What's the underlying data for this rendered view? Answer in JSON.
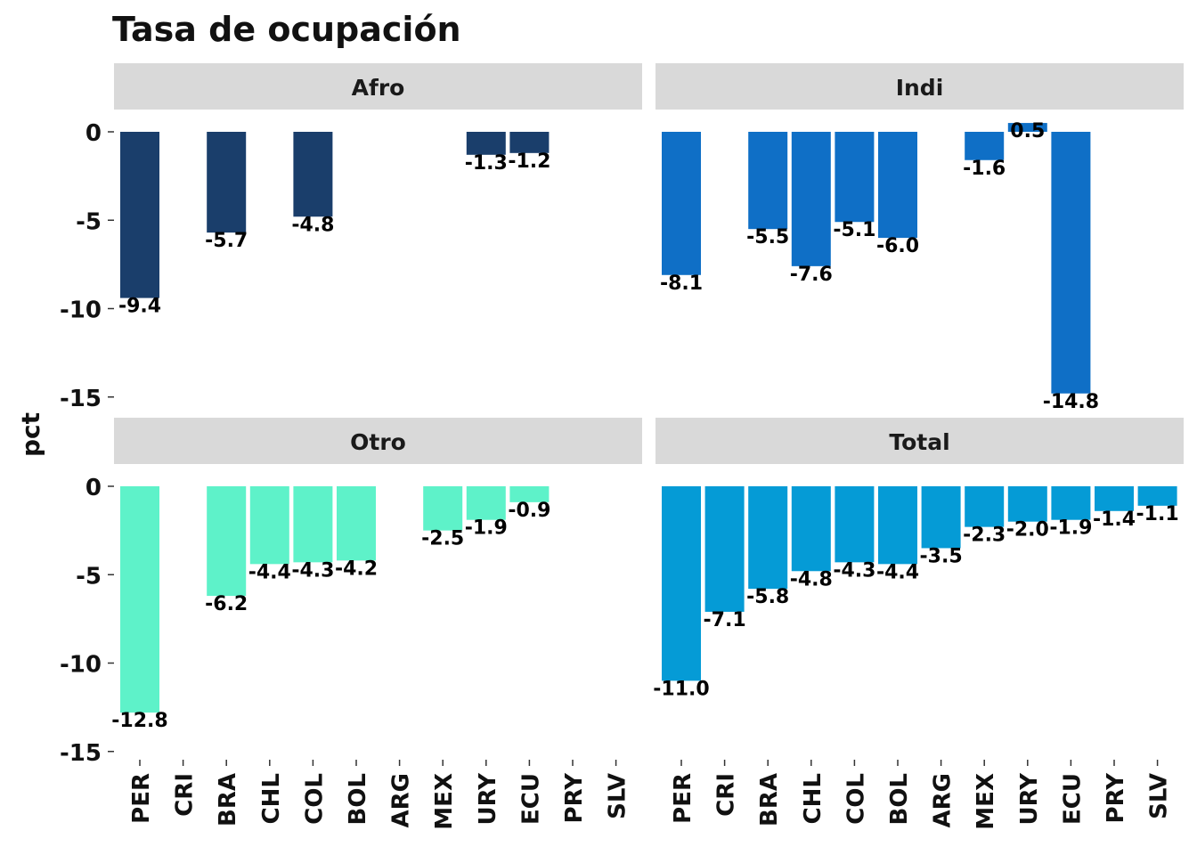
{
  "chart_data": {
    "type": "bar",
    "title": "Tasa de ocupación",
    "ylabel": "pct",
    "xlabel": "",
    "ylim": [
      -15,
      0
    ],
    "yticks": [
      0,
      -5,
      -10,
      -15
    ],
    "ytick_labels": [
      "0",
      "-5",
      "-10",
      "-15"
    ],
    "categories": [
      "PER",
      "CRI",
      "BRA",
      "CHL",
      "COL",
      "BOL",
      "ARG",
      "MEX",
      "URY",
      "ECU",
      "PRY",
      "SLV"
    ],
    "grid": false,
    "legend": "none",
    "facets": [
      {
        "name": "Afro",
        "color": "#1A3E6B",
        "values": [
          -9.4,
          null,
          -5.7,
          null,
          -4.8,
          null,
          null,
          null,
          -1.3,
          -1.2,
          null,
          null
        ],
        "labels": [
          "-9.4",
          null,
          "-5.7",
          null,
          "-4.8",
          null,
          null,
          null,
          "-1.3",
          "-1.2",
          null,
          null
        ]
      },
      {
        "name": "Indi",
        "color": "#0F6FC6",
        "values": [
          -8.1,
          null,
          -5.5,
          -7.6,
          -5.1,
          -6.0,
          null,
          -1.6,
          0.5,
          -14.8,
          null,
          null
        ],
        "labels": [
          "-8.1",
          null,
          "-5.5",
          "-7.6",
          "-5.1",
          "-6.0",
          null,
          "-1.6",
          "0.5",
          "-14.8",
          null,
          null
        ]
      },
      {
        "name": "Otro",
        "color": "#5EF2C9",
        "values": [
          -12.8,
          null,
          -6.2,
          -4.4,
          -4.3,
          -4.2,
          null,
          -2.5,
          -1.9,
          -0.9,
          null,
          null
        ],
        "labels": [
          "-12.8",
          null,
          "-6.2",
          "-4.4",
          "-4.3",
          "-4.2",
          null,
          "-2.5",
          "-1.9",
          "-0.9",
          null,
          null
        ]
      },
      {
        "name": "Total",
        "color": "#059BD6",
        "values": [
          -11.0,
          -7.1,
          -5.8,
          -4.8,
          -4.3,
          -4.4,
          -3.5,
          -2.3,
          -2.0,
          -1.9,
          -1.4,
          -1.1
        ],
        "labels": [
          "-11.0",
          "-7.1",
          "-5.8",
          "-4.8",
          "-4.3",
          "-4.4",
          "-3.5",
          "-2.3",
          "-2.0",
          "-1.9",
          "-1.4",
          "-1.1"
        ]
      }
    ]
  },
  "colors": {
    "strip_background": "#D9D9D9",
    "text": "#111111",
    "axis": "#333333"
  }
}
